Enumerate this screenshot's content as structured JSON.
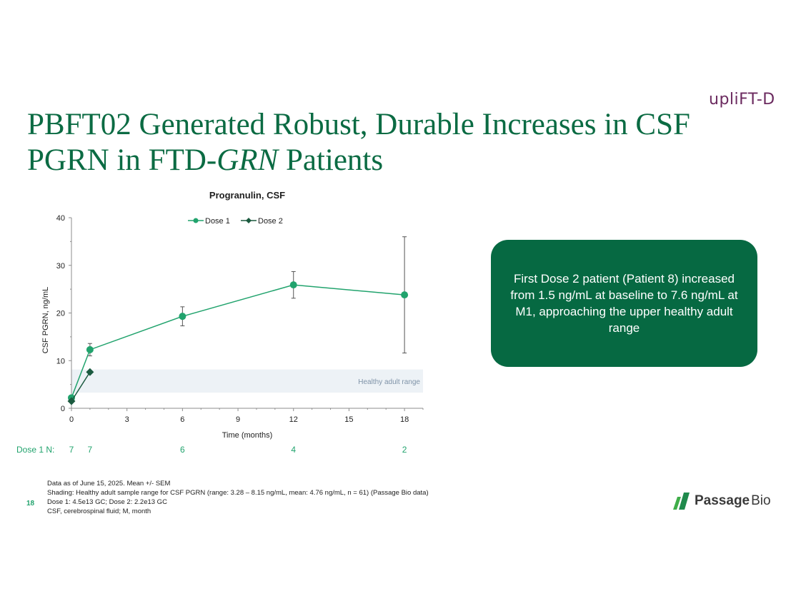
{
  "header": {
    "brand_logo": "upliFT-D",
    "title_part1": "PBFT02 Generated Robust, Durable Increases in CSF PGRN in FTD-",
    "title_italic": "GRN",
    "title_part2": " Patients"
  },
  "chart_data": {
    "type": "line",
    "title": "Progranulin, CSF",
    "xlabel": "Time (months)",
    "ylabel": "CSF PGRN, ng/mL",
    "xlim": [
      0,
      19
    ],
    "ylim": [
      0,
      40
    ],
    "xticks": [
      0,
      3,
      6,
      9,
      12,
      15,
      18
    ],
    "yticks": [
      0,
      10,
      20,
      30,
      40
    ],
    "legend_position": "top-center",
    "grid": false,
    "series": [
      {
        "name": "Dose 1",
        "marker": "circle",
        "color": "#21a36d",
        "x": [
          0,
          1,
          6,
          12,
          18
        ],
        "y": [
          2.2,
          12.3,
          19.3,
          25.9,
          23.8
        ],
        "err_low": [
          1.8,
          11.0,
          17.3,
          23.1,
          11.6
        ],
        "err_high": [
          2.6,
          13.6,
          21.3,
          28.7,
          36.0
        ]
      },
      {
        "name": "Dose 2",
        "marker": "diamond",
        "color": "#1b5a3f",
        "x": [
          0,
          1
        ],
        "y": [
          1.5,
          7.6
        ]
      }
    ],
    "shaded_band": {
      "label": "Healthy adult range",
      "y0": 3.28,
      "y1": 8.15,
      "color": "#edf2f6"
    }
  },
  "callout": {
    "text": "First Dose 2 patient (Patient 8) increased from 1.5 ng/mL at baseline to 7.6 ng/mL at M1, approaching the upper healthy adult range"
  },
  "dose_n": {
    "label": "Dose 1 N:",
    "values": [
      {
        "month": 0,
        "n": "7"
      },
      {
        "month": 1,
        "n": "7"
      },
      {
        "month": 6,
        "n": "6"
      },
      {
        "month": 12,
        "n": "4"
      },
      {
        "month": 18,
        "n": "2"
      }
    ]
  },
  "footnotes": [
    "Data as of June 15, 2025. Mean +/- SEM",
    "Shading: Healthy adult sample range for CSF PGRN (range: 3.28 – 8.15 ng/mL, mean: 4.76 ng/mL, n = 61) (Passage Bio data)",
    "Dose 1: 4.5e13 GC; Dose 2: 2.2e13 GC",
    "CSF, cerebrospinal fluid; M, month"
  ],
  "page_number": "18",
  "company_logo": {
    "bold": "Passage",
    "light": "Bio"
  },
  "colors": {
    "accent_green": "#0b6b43",
    "callout_bg": "#066942",
    "dose1": "#21a36d",
    "dose2": "#1b5a3f"
  }
}
